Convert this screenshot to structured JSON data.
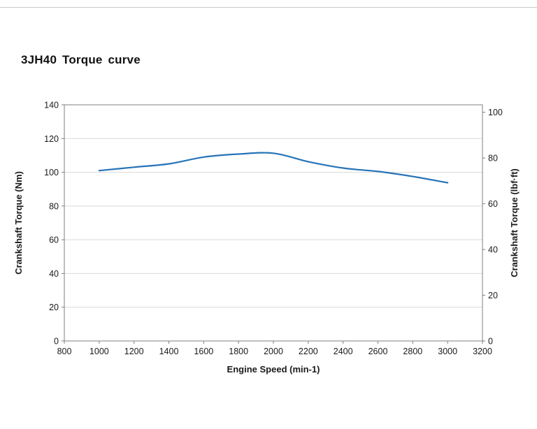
{
  "chart_data": {
    "type": "line",
    "title": "3JH40 Torque curve",
    "xlabel": "Engine Speed (min-1)",
    "ylabel_left": "Crankshaft Torque (Nm)",
    "ylabel_right": "Crankshaft Torque (lbf·ft)",
    "xlim": [
      800,
      3200
    ],
    "xticks": [
      800,
      1000,
      1200,
      1400,
      1600,
      1800,
      2000,
      2200,
      2400,
      2600,
      2800,
      3000,
      3200
    ],
    "ylim_left": [
      0,
      140
    ],
    "yticks_left": [
      0,
      20,
      40,
      60,
      80,
      100,
      120,
      140
    ],
    "yticks_right": [
      0,
      20,
      40,
      60,
      80,
      100
    ],
    "right_axis_nm_per_lbfft": 1.35582,
    "grid": "horizontal",
    "legend_position": "none",
    "series": [
      {
        "name": "Crankshaft Torque",
        "x": [
          1000,
          1200,
          1400,
          1600,
          1800,
          2000,
          2200,
          2400,
          2600,
          2800,
          3000
        ],
        "values": [
          101,
          103,
          105,
          109,
          110.8,
          111.3,
          106.3,
          102.5,
          100.5,
          97.5,
          93.8
        ]
      }
    ],
    "colors": {
      "line": "#2674b8",
      "grid": "#d9d9d9",
      "axis": "#7f7f7f",
      "text": "#1a1a1a"
    }
  }
}
